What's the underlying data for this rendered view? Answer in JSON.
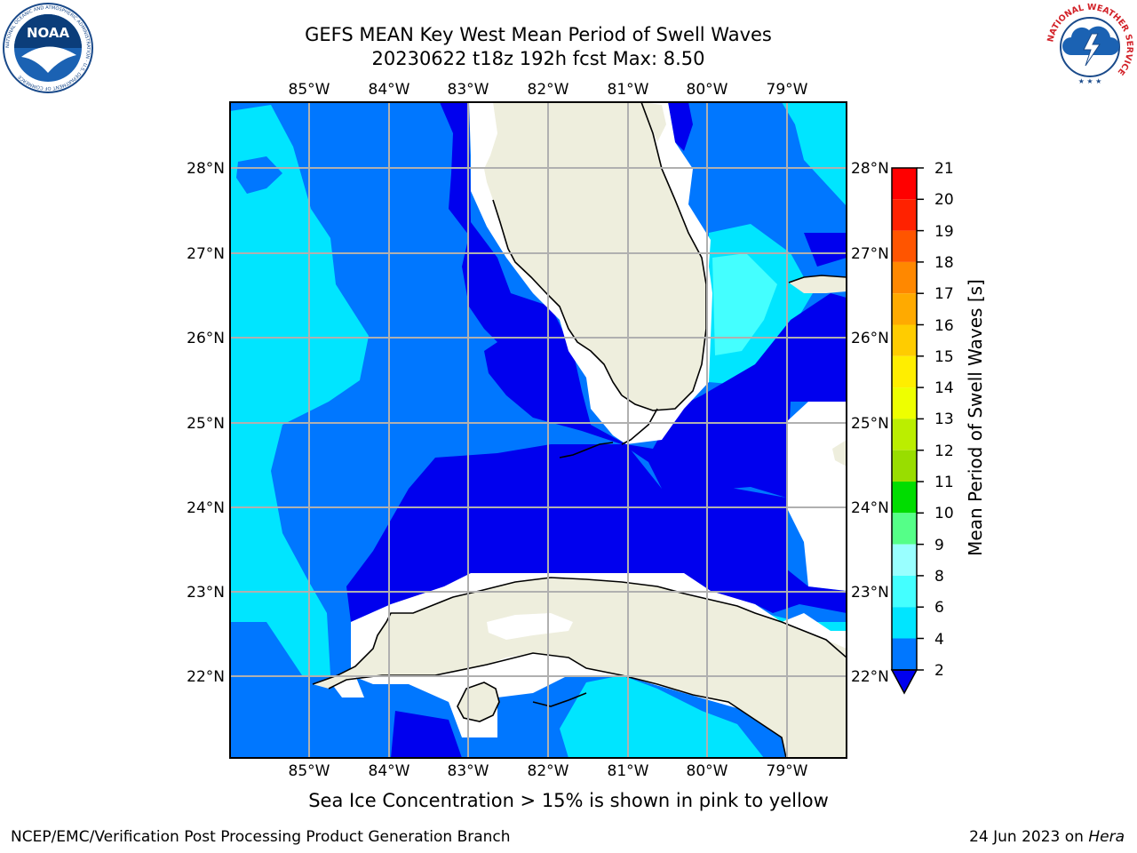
{
  "header": {
    "title_line1": "GEFS MEAN Key West Mean Period of Swell Waves",
    "title_line2": "20230622 t18z 192h fcst   Max: 8.50"
  },
  "map": {
    "lon_labels": [
      "85°W",
      "84°W",
      "83°W",
      "82°W",
      "81°W",
      "80°W",
      "79°W"
    ],
    "lat_labels": [
      "28°N",
      "27°N",
      "26°N",
      "25°N",
      "24°N",
      "23°N",
      "22°N"
    ],
    "colors": {
      "land": "#eeeedd",
      "band_2_4": "#0077ff",
      "band_lt_2": "#0000ee",
      "band_4_6": "#00e5ff",
      "band_6_8": "#44ffff",
      "grid": "#b0b0b0"
    }
  },
  "colorbar": {
    "label": "Mean Period of Swell Waves [s]",
    "ticks": [
      "2",
      "4",
      "6",
      "8",
      "9",
      "10",
      "11",
      "12",
      "13",
      "14",
      "15",
      "16",
      "17",
      "18",
      "19",
      "20",
      "21"
    ],
    "colors": [
      "#0077ff",
      "#00e5ff",
      "#44ffff",
      "#99ffff",
      "#55ff88",
      "#22ee22",
      "#00dd00",
      "#44dd00",
      "#99dd00",
      "#bbee00",
      "#eeff00",
      "#ffee00",
      "#ffcc00",
      "#ffaa00",
      "#ff8800",
      "#ff5500",
      "#ff2200",
      "#ff0000"
    ],
    "under_color": "#0000ee"
  },
  "footer": {
    "note": "Sea Ice Concentration > 15% is shown in pink to yellow",
    "credit": "NCEP/EMC/Verification Post Processing Product Generation Branch",
    "date_prefix": "24 Jun 2023 on ",
    "date_machine": "Hera"
  },
  "logos": {
    "noaa_text": "NOAA",
    "noaa_ring": "NATIONAL OCEANIC AND ATMOSPHERIC ADMINISTRATION · U.S. DEPARTMENT OF COMMERCE",
    "nws_ring": "NATIONAL WEATHER SERVICE"
  }
}
